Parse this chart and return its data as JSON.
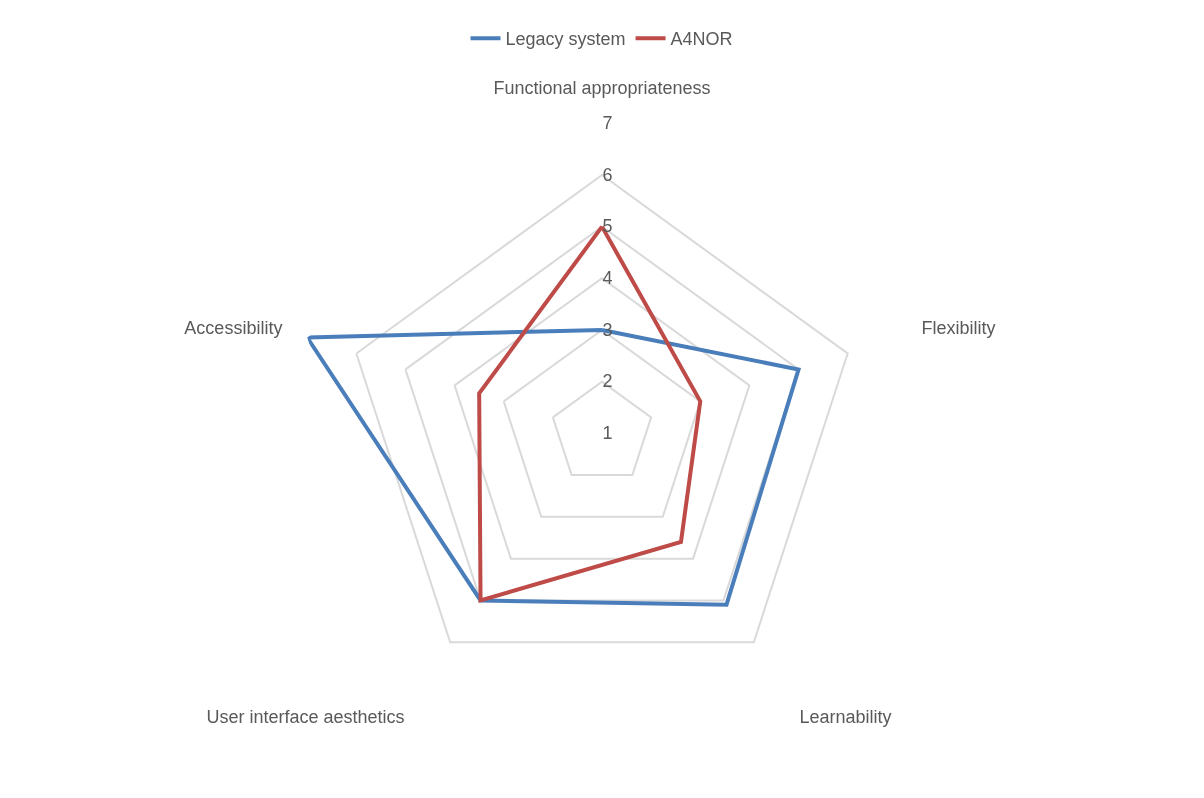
{
  "chart_data": {
    "type": "radar",
    "categories": [
      "Functional appropriateness",
      "Flexibility",
      "Learnability",
      "User interface aesthetics",
      "Accessibility"
    ],
    "series": [
      {
        "name": "Legacy system",
        "color": "#4a7ebb",
        "values": [
          3,
          5,
          5.1,
          5,
          7
        ]
      },
      {
        "name": "A4NOR",
        "color": "#be4b48",
        "values": [
          5,
          3,
          3.6,
          5,
          3.5
        ]
      }
    ],
    "ylim": [
      1,
      7
    ],
    "yticks": [
      1,
      2,
      3,
      4,
      5,
      6,
      7
    ],
    "grid": true,
    "legend": "top",
    "marker": "none",
    "line_style": "solid"
  }
}
